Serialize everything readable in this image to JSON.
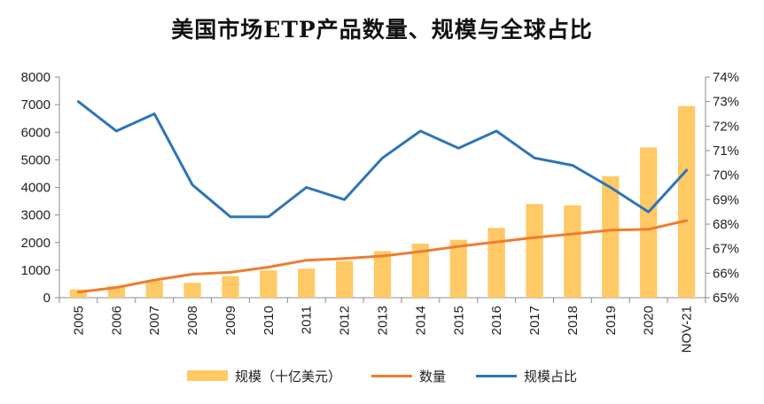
{
  "chart_data": {
    "type": "bar+line",
    "title": "美国市场ETP产品数量、规模与全球占比",
    "categories": [
      "2005",
      "2006",
      "2007",
      "2008",
      "2009",
      "2010",
      "2011",
      "2012",
      "2013",
      "2014",
      "2015",
      "2016",
      "2017",
      "2018",
      "2019",
      "2020",
      "NOV-21"
    ],
    "series": [
      {
        "name": "规模（十亿美元）",
        "kind": "bar",
        "axis": "left",
        "color": "#FFC966",
        "values": [
          300,
          420,
          610,
          540,
          780,
          990,
          1050,
          1330,
          1690,
          1960,
          2100,
          2530,
          3400,
          3350,
          4400,
          5450,
          6950
        ]
      },
      {
        "name": "数量",
        "kind": "line",
        "axis": "left",
        "color": "#ED7D31",
        "values": [
          200,
          370,
          640,
          850,
          920,
          1110,
          1360,
          1420,
          1510,
          1670,
          1860,
          2020,
          2180,
          2310,
          2450,
          2480,
          2800
        ]
      },
      {
        "name": "规模占比",
        "kind": "line",
        "axis": "right",
        "color": "#2E75B6",
        "values": [
          73.0,
          71.8,
          72.5,
          69.6,
          68.3,
          68.3,
          69.5,
          69.0,
          70.7,
          71.8,
          71.1,
          71.8,
          70.7,
          70.4,
          69.5,
          68.5,
          70.2
        ]
      }
    ],
    "left_axis": {
      "min": 0,
      "max": 8000,
      "step": 1000,
      "tick_labels": [
        "0",
        "1000",
        "2000",
        "3000",
        "4000",
        "5000",
        "6000",
        "7000",
        "8000"
      ]
    },
    "right_axis": {
      "min": 65,
      "max": 74,
      "step": 1,
      "tick_labels": [
        "65%",
        "66%",
        "67%",
        "68%",
        "69%",
        "70%",
        "71%",
        "72%",
        "73%",
        "74%"
      ]
    },
    "legend_position": "bottom"
  }
}
